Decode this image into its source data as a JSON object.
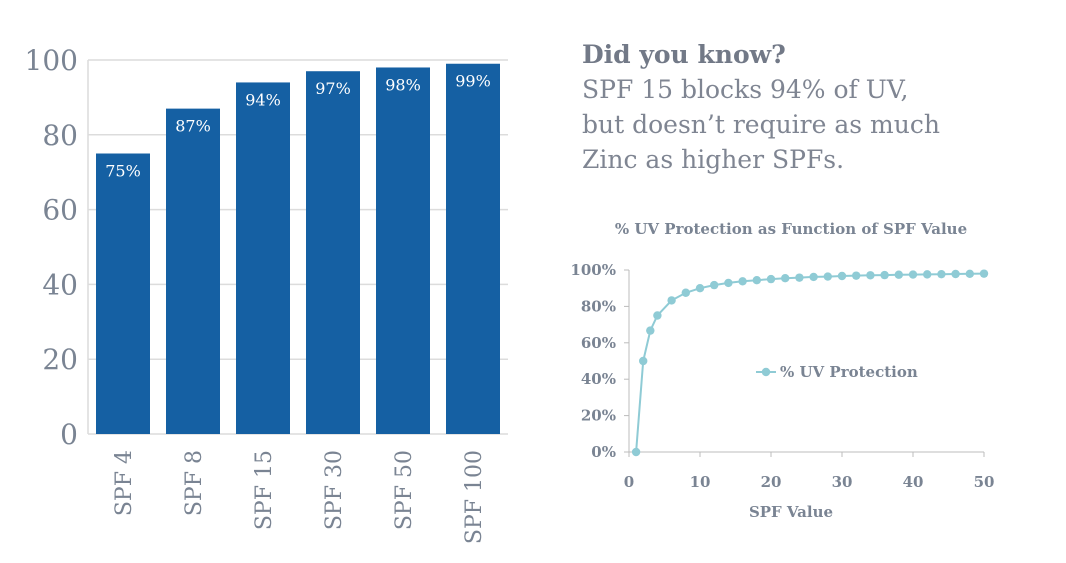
{
  "note": {
    "heading": "Did you know?",
    "lines": [
      "SPF 15 blocks 94% of UV,",
      "but doesn’t require as much",
      "Zinc as higher SPFs."
    ]
  },
  "colors": {
    "bar": "#1560a3",
    "line": "#8fcbd5",
    "text": "#7a8493",
    "grid": "#dcdcdc"
  },
  "chart_data": [
    {
      "type": "bar",
      "categories": [
        "SPF 4",
        "SPF 8",
        "SPF 15",
        "SPF 30",
        "SPF 50",
        "SPF 100"
      ],
      "values": [
        75,
        87,
        94,
        97,
        98,
        99
      ],
      "data_labels": [
        "75%",
        "87%",
        "94%",
        "97%",
        "98%",
        "99%"
      ],
      "ylim": [
        0,
        100
      ],
      "yticks": [
        "0",
        "20",
        "40",
        "60",
        "80",
        "100"
      ],
      "grid": true
    },
    {
      "type": "line",
      "title": "% UV Protection as Function of SPF Value",
      "xlabel": "SPF Value",
      "ylabel": "",
      "xlim": [
        0,
        50
      ],
      "ylim": [
        0,
        100
      ],
      "xticks": [
        "0",
        "10",
        "20",
        "30",
        "40",
        "50"
      ],
      "yticks": [
        "0%",
        "20%",
        "40%",
        "60%",
        "80%",
        "100%"
      ],
      "legend": {
        "position": "center",
        "label": "% UV Protection"
      },
      "series": [
        {
          "name": "% UV Protection",
          "x": [
            1,
            2,
            3,
            4,
            6,
            8,
            10,
            12,
            14,
            16,
            18,
            20,
            22,
            24,
            26,
            28,
            30,
            32,
            34,
            36,
            38,
            40,
            42,
            44,
            46,
            48,
            50
          ],
          "y": [
            0,
            50,
            66.7,
            75,
            83.3,
            87.5,
            90,
            91.7,
            92.9,
            93.8,
            94.4,
            95,
            95.5,
            95.8,
            96.2,
            96.4,
            96.7,
            96.9,
            97.1,
            97.2,
            97.4,
            97.5,
            97.6,
            97.7,
            97.8,
            97.9,
            98
          ]
        }
      ]
    }
  ]
}
